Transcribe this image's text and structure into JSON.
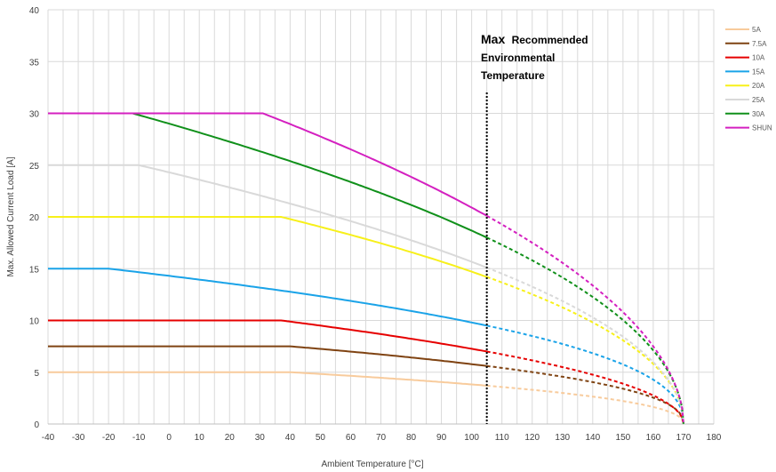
{
  "chart_data": {
    "type": "line",
    "title": "",
    "xlabel": "Ambient Temperature [°C]",
    "ylabel": "Max. Allowed Current Load [A]",
    "xlim": [
      -40,
      180
    ],
    "ylim": [
      0,
      40
    ],
    "xticks": [
      -40,
      -30,
      -20,
      -10,
      0,
      10,
      20,
      30,
      40,
      50,
      60,
      70,
      80,
      90,
      100,
      110,
      120,
      130,
      140,
      150,
      160,
      170,
      180
    ],
    "yticks": [
      0,
      5,
      10,
      15,
      20,
      25,
      30,
      35,
      40
    ],
    "grid": true,
    "legend_position": "right",
    "limit_line": {
      "x": 105,
      "style": "dotted"
    },
    "annotation": {
      "line1_bold": "Max",
      "line1_rest": "Recommended",
      "line2": "Environmental",
      "line3": "Temperature"
    },
    "series": [
      {
        "name": "5A",
        "color": "#f8cb9c",
        "plateau": 5,
        "knee": 40,
        "value_at_105": 3.7
      },
      {
        "name": "7.5A",
        "color": "#7f4312",
        "plateau": 7.5,
        "knee": 40,
        "value_at_105": 5.6
      },
      {
        "name": "10A",
        "color": "#e60000",
        "plateau": 10,
        "knee": 37,
        "value_at_105": 7.0
      },
      {
        "name": "15A",
        "color": "#1aa3e8",
        "plateau": 15,
        "knee": -20,
        "value_at_105": 9.5
      },
      {
        "name": "20A",
        "color": "#f7f01a",
        "plateau": 20,
        "knee": 37,
        "value_at_105": 14.2
      },
      {
        "name": "25A",
        "color": "#d9d9d9",
        "plateau": 25,
        "knee": -10,
        "value_at_105": 15.1
      },
      {
        "name": "30A",
        "color": "#10901a",
        "plateau": 30,
        "knee": -12,
        "value_at_105": 18.0
      },
      {
        "name": "SHUN",
        "color": "#d420c0",
        "plateau": 30,
        "knee": 31,
        "value_at_105": 20.1
      }
    ]
  }
}
